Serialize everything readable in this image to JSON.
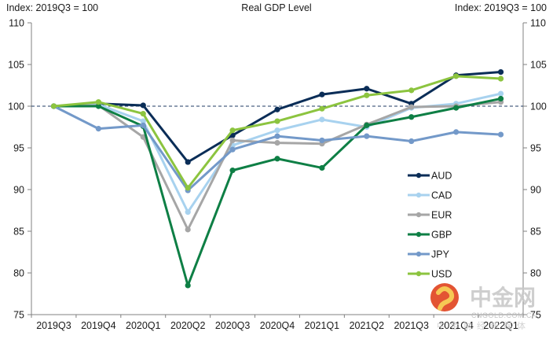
{
  "chart_data": {
    "type": "line",
    "title": "Real GDP Level",
    "ylabel_left": "Index: 2019Q3 = 100",
    "ylabel_right": "Index: 2019Q3 = 100",
    "xlabel": "",
    "ylim": [
      75,
      110
    ],
    "yticks": [
      75,
      80,
      85,
      90,
      95,
      100,
      105,
      110
    ],
    "reference_line": 100,
    "grid": false,
    "legend_position": "lower-right",
    "categories": [
      "2019Q3",
      "2019Q4",
      "2020Q1",
      "2020Q2",
      "2020Q3",
      "2020Q4",
      "2021Q1",
      "2021Q2",
      "2021Q3",
      "2021Q4",
      "2022Q1"
    ],
    "series": [
      {
        "name": "AUD",
        "color": "#0a2d57",
        "values": [
          100,
          100.3,
          100.1,
          93.3,
          96.5,
          99.6,
          101.4,
          102.1,
          100.3,
          103.7,
          104.1
        ]
      },
      {
        "name": "CAD",
        "color": "#a8d2ef",
        "values": [
          100,
          100.2,
          98.2,
          87.3,
          95.3,
          97.1,
          98.4,
          97.5,
          99.8,
          100.3,
          101.5
        ]
      },
      {
        "name": "EUR",
        "color": "#a6a6a6",
        "values": [
          100,
          100.1,
          96.3,
          85.2,
          95.9,
          95.6,
          95.5,
          97.8,
          99.9,
          100.0,
          100.5
        ]
      },
      {
        "name": "GBP",
        "color": "#0e7f45",
        "values": [
          100,
          100.0,
          97.6,
          78.5,
          92.3,
          93.7,
          92.6,
          97.7,
          98.7,
          99.8,
          100.9
        ]
      },
      {
        "name": "JPY",
        "color": "#7399c9",
        "values": [
          100,
          97.3,
          97.7,
          89.9,
          94.8,
          96.4,
          95.9,
          96.4,
          95.8,
          96.9,
          96.6
        ]
      },
      {
        "name": "USD",
        "color": "#8cc43f",
        "values": [
          100,
          100.5,
          99.1,
          90.2,
          97.1,
          98.2,
          99.7,
          101.3,
          101.9,
          103.6,
          103.3
        ]
      }
    ]
  },
  "watermark": {
    "name_cn": "中金网",
    "domain": "CNGOLD.COM.CN",
    "tagline": "中金财经新媒体"
  }
}
